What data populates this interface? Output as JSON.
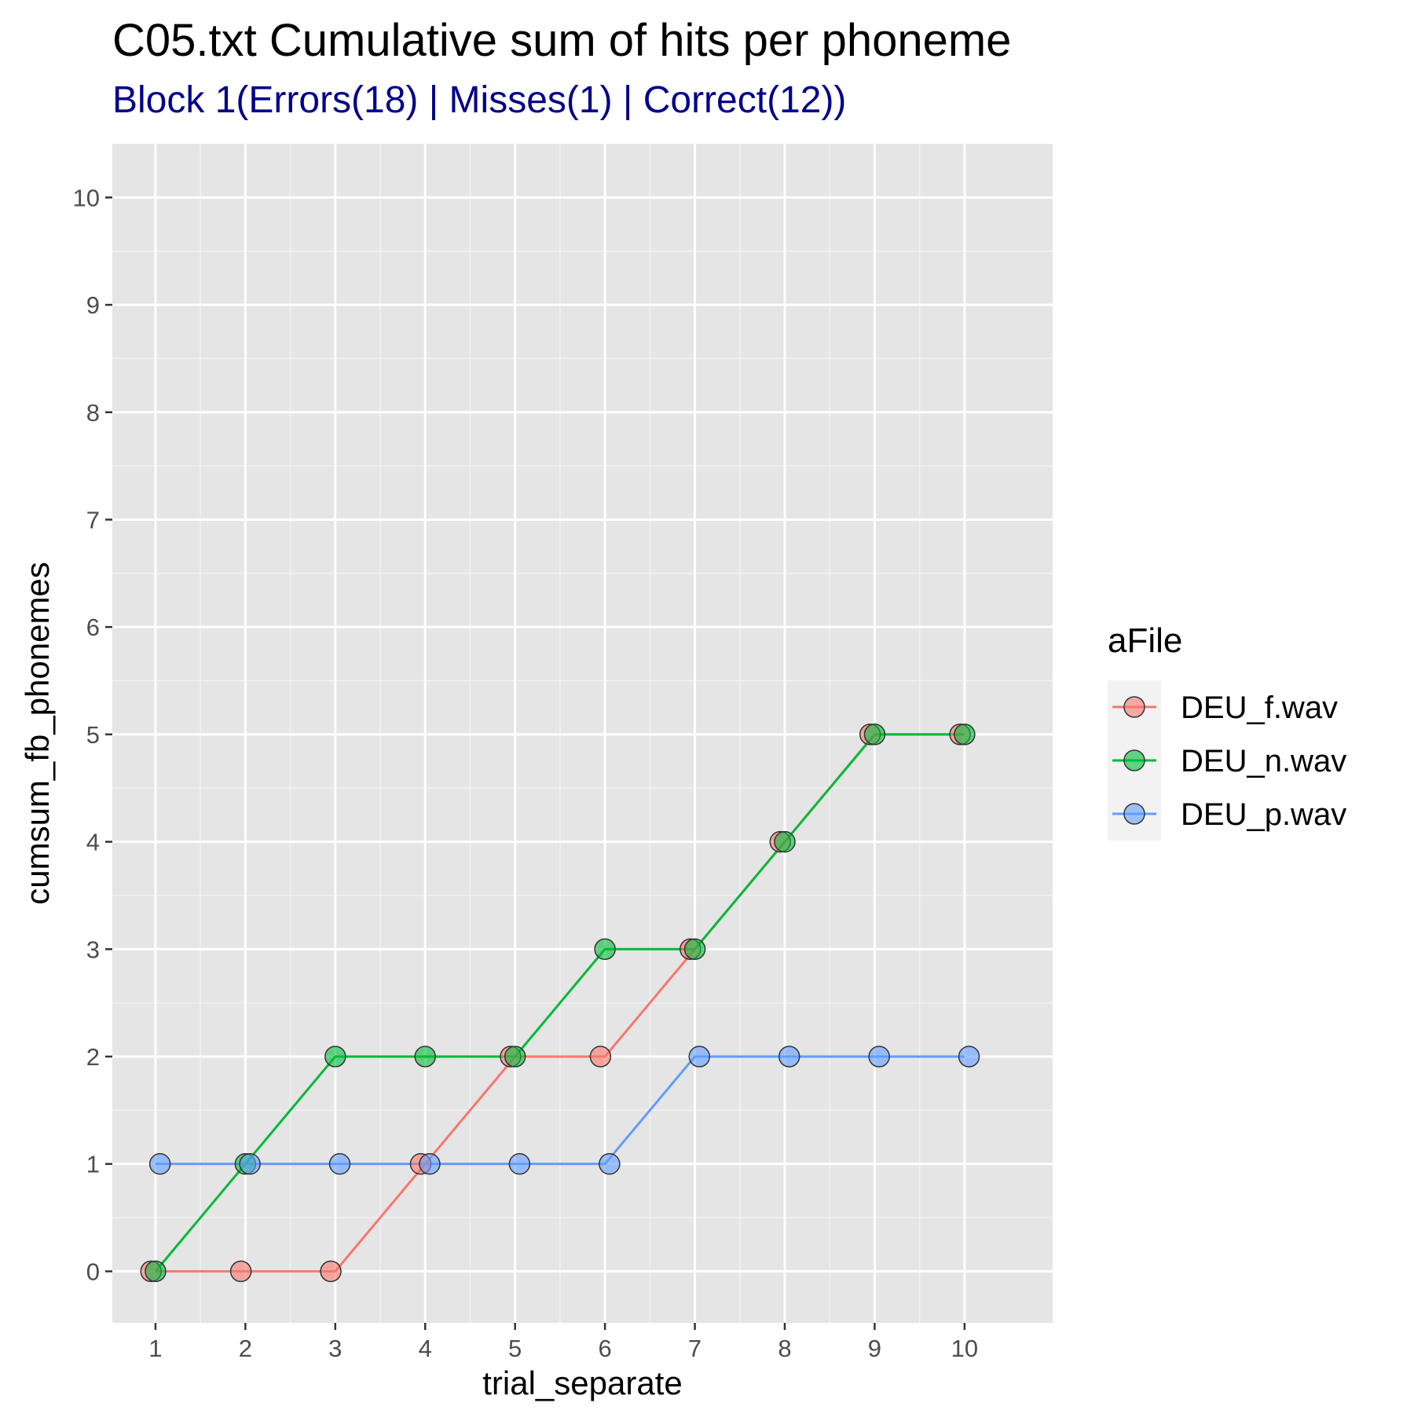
{
  "chart_data": {
    "type": "line",
    "title": "C05.txt Cumulative sum of hits per phoneme",
    "subtitle": "Block 1(Errors(18) | Misses(1) | Correct(12))",
    "subtitle_color": "#00008B",
    "xlabel": "trial_separate",
    "ylabel": "cumsum_fb_phonemes",
    "x": [
      1,
      2,
      3,
      4,
      5,
      6,
      7,
      8,
      9,
      10
    ],
    "x_ticks": [
      "1",
      "2",
      "3",
      "4",
      "5",
      "6",
      "7",
      "8",
      "9",
      "10"
    ],
    "y_ticks": [
      "0",
      "1",
      "2",
      "3",
      "4",
      "5",
      "6",
      "7",
      "8",
      "9",
      "10"
    ],
    "xlim": [
      0.52,
      10.98
    ],
    "ylim": [
      -0.48,
      10.5
    ],
    "grid": true,
    "panel_background": "#E5E5E5",
    "legend_title": "aFile",
    "legend_position": "right",
    "series": [
      {
        "name": "DEU_f.wav",
        "color": "#F8766D",
        "values": [
          0,
          0,
          0,
          1,
          2,
          2,
          3,
          4,
          5,
          5
        ]
      },
      {
        "name": "DEU_n.wav",
        "color": "#00BA38",
        "values": [
          0,
          1,
          2,
          2,
          2,
          3,
          3,
          4,
          5,
          5
        ]
      },
      {
        "name": "DEU_p.wav",
        "color": "#619CFF",
        "values": [
          1,
          1,
          1,
          1,
          1,
          1,
          2,
          2,
          2,
          2
        ]
      }
    ]
  }
}
